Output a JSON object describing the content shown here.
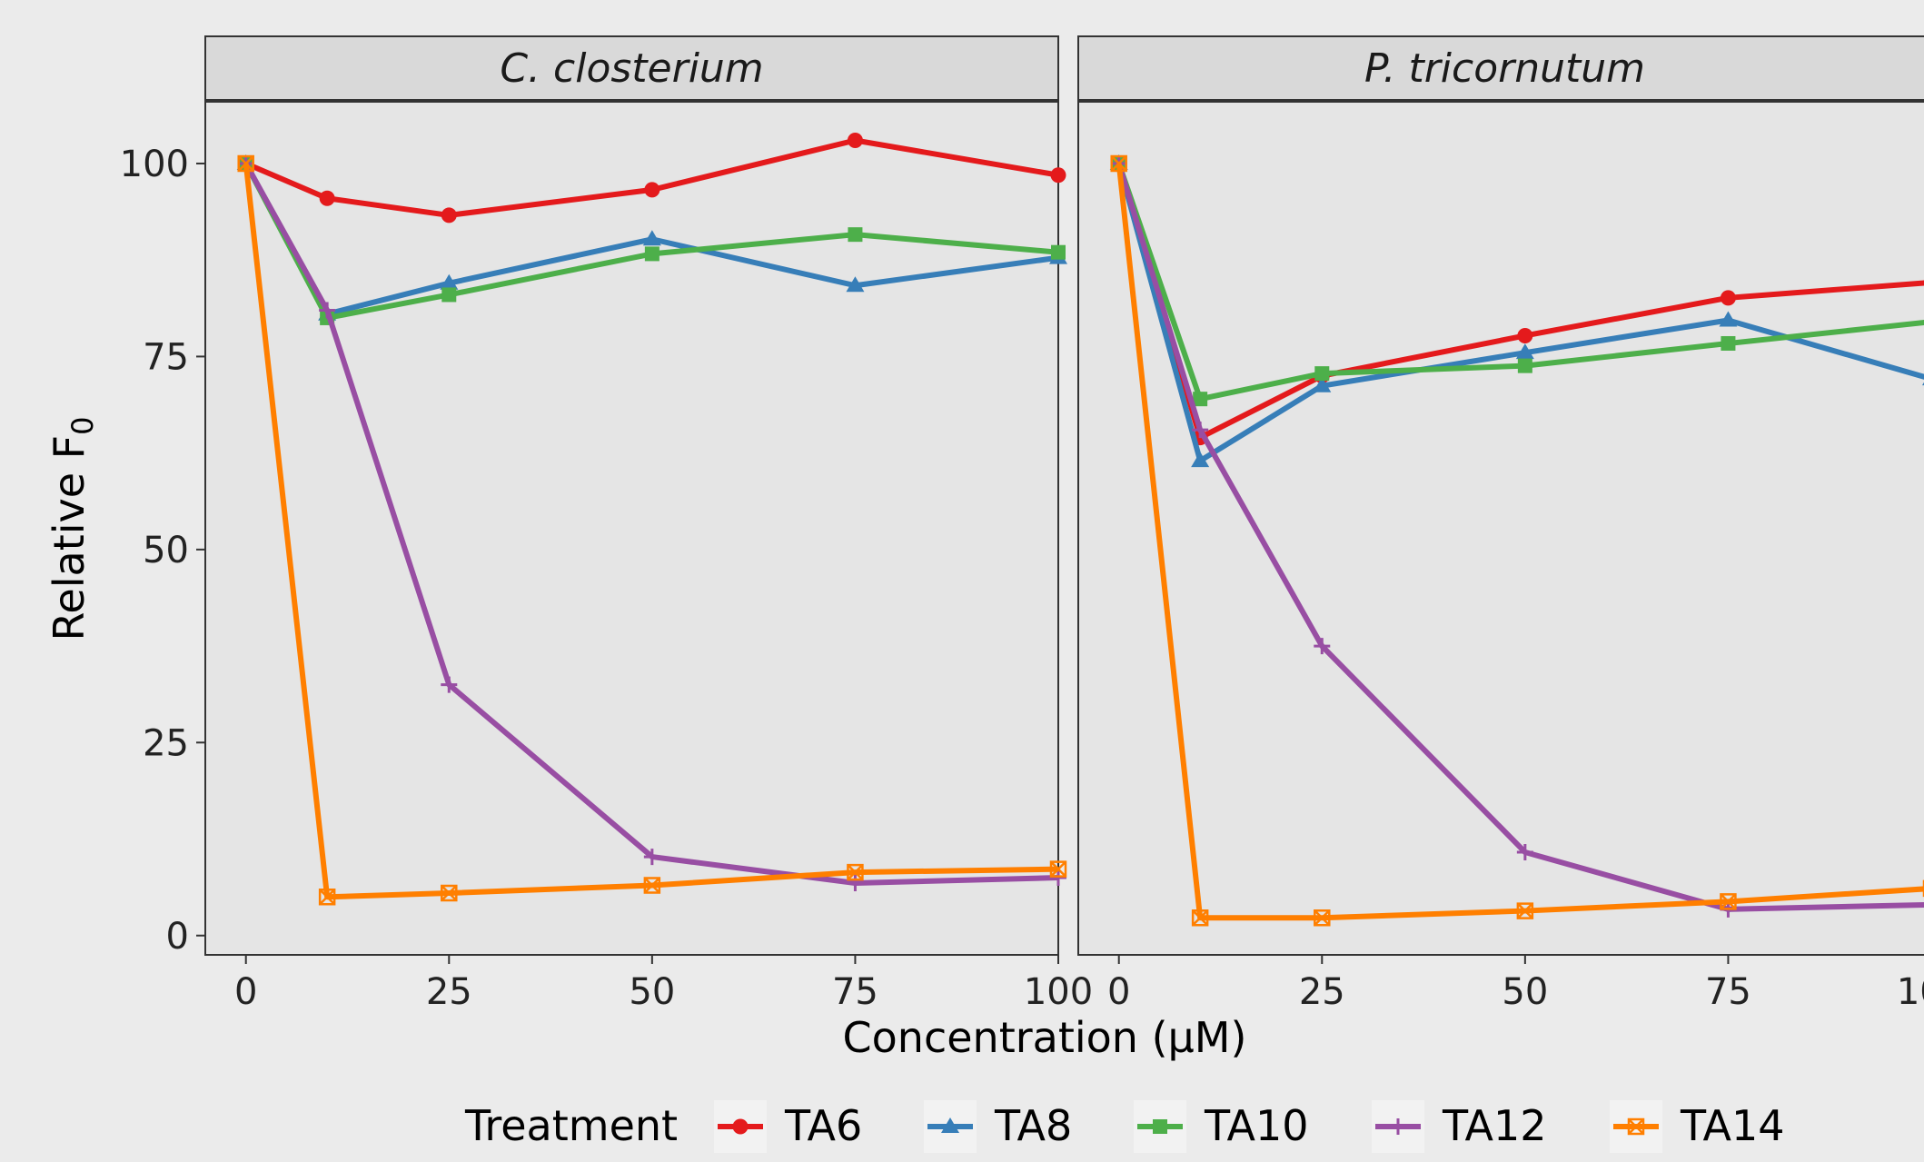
{
  "chart_data": {
    "type": "line",
    "xlabel": "Concentration (μM)",
    "ylabel": "Relative F",
    "ylabel_subscript": "0",
    "xlim": [
      -5,
      100
    ],
    "ylim": [
      -2.5,
      108
    ],
    "x_ticks": [
      0,
      25,
      50,
      75,
      100
    ],
    "y_ticks": [
      0,
      25,
      50,
      75,
      100
    ],
    "x": [
      0,
      10,
      25,
      50,
      75,
      100
    ],
    "legend": {
      "title": "Treatment",
      "position": "bottom"
    },
    "grid": false,
    "series_styles": [
      {
        "name": "TA6",
        "color": "#e41a1c",
        "marker": "circle"
      },
      {
        "name": "TA8",
        "color": "#377eb8",
        "marker": "triangle"
      },
      {
        "name": "TA10",
        "color": "#4daf4a",
        "marker": "square"
      },
      {
        "name": "TA12",
        "color": "#984ea3",
        "marker": "plus"
      },
      {
        "name": "TA14",
        "color": "#ff7f00",
        "marker": "square-cross"
      }
    ],
    "panels": [
      {
        "title": "C. closterium",
        "series": [
          {
            "name": "TA6",
            "values": [
              100,
              95.5,
              93.3,
              96.6,
              103,
              98.5
            ]
          },
          {
            "name": "TA8",
            "values": [
              100,
              80.5,
              84.5,
              90.2,
              84.2,
              87.8
            ]
          },
          {
            "name": "TA10",
            "values": [
              100,
              80,
              83,
              88.3,
              90.8,
              88.5
            ]
          },
          {
            "name": "TA12",
            "values": [
              100,
              81,
              32.5,
              10.2,
              6.8,
              7.5
            ]
          },
          {
            "name": "TA14",
            "values": [
              100,
              5,
              5.5,
              6.5,
              8.2,
              8.6
            ]
          }
        ]
      },
      {
        "title": "P. tricornutum",
        "series": [
          {
            "name": "TA6",
            "values": [
              100,
              64.5,
              72.5,
              77.7,
              82.6,
              84.6
            ]
          },
          {
            "name": "TA8",
            "values": [
              100,
              61.5,
              71.2,
              75.5,
              79.7,
              72.1
            ]
          },
          {
            "name": "TA10",
            "values": [
              100,
              69.5,
              72.8,
              73.8,
              76.7,
              79.5
            ]
          },
          {
            "name": "TA12",
            "values": [
              100,
              65.5,
              37.5,
              10.8,
              3.4,
              4.0
            ]
          },
          {
            "name": "TA14",
            "values": [
              100,
              2.3,
              2.3,
              3.2,
              4.4,
              6.1
            ]
          }
        ]
      }
    ]
  }
}
